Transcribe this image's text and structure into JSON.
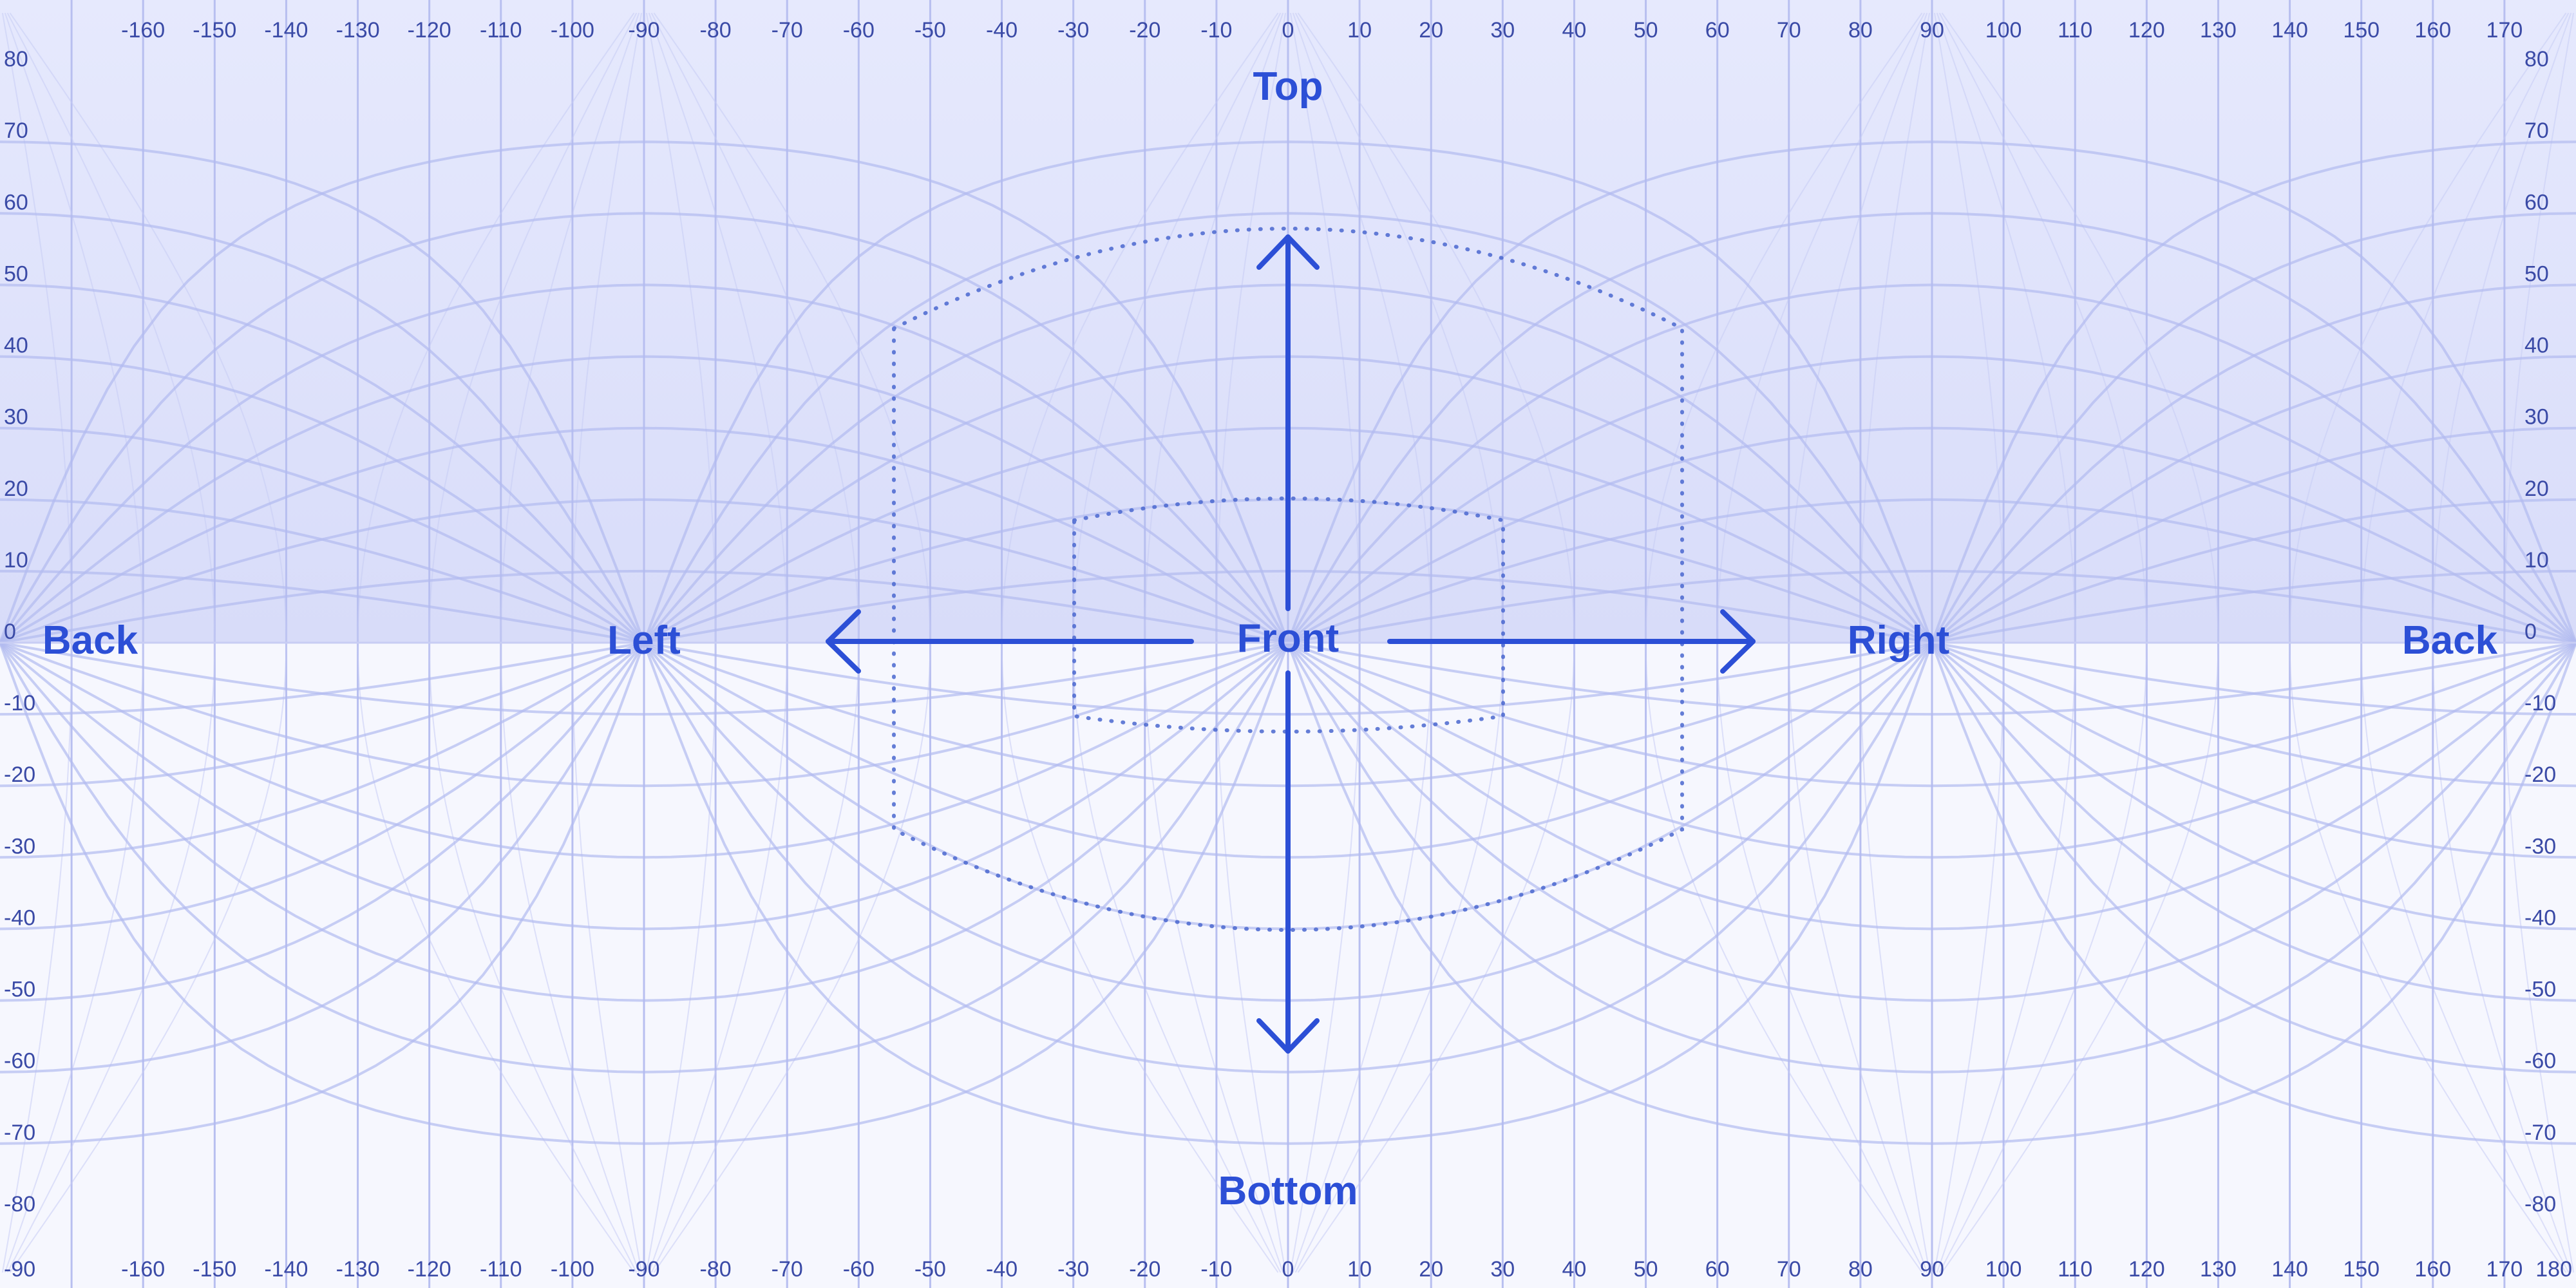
{
  "top_lon_labels": [
    "-160",
    "-150",
    "-140",
    "-130",
    "-120",
    "-110",
    "-100",
    "-90",
    "-80",
    "-70",
    "-60",
    "-50",
    "-40",
    "-30",
    "-20",
    "-10",
    "0",
    "10",
    "20",
    "30",
    "40",
    "50",
    "60",
    "70",
    "80",
    "90",
    "100",
    "110",
    "120",
    "130",
    "140",
    "150",
    "160",
    "170"
  ],
  "bottom_lon_labels": [
    "-160",
    "-150",
    "-140",
    "-130",
    "-120",
    "-110",
    "-100",
    "-90",
    "-80",
    "-70",
    "-60",
    "-50",
    "-40",
    "-30",
    "-20",
    "-10",
    "0",
    "10",
    "20",
    "30",
    "40",
    "50",
    "60",
    "70",
    "80",
    "90",
    "100",
    "110",
    "120",
    "130",
    "140",
    "150",
    "160",
    "170",
    "180"
  ],
  "left_lat_labels": [
    "80",
    "70",
    "60",
    "50",
    "40",
    "30",
    "20",
    "10",
    "0",
    "-10",
    "-20",
    "-30",
    "-40",
    "-50",
    "-60",
    "-70",
    "-80",
    "-90"
  ],
  "right_lat_labels": [
    "80",
    "70",
    "60",
    "50",
    "40",
    "30",
    "20",
    "10",
    "0",
    "-10",
    "-20",
    "-30",
    "-40",
    "-50",
    "-60",
    "-70",
    "-80"
  ],
  "directions": {
    "top": "Top",
    "bottom": "Bottom",
    "front": "Front",
    "left": "Left",
    "right": "Right",
    "back_left": "Back",
    "back_right": "Back"
  },
  "colors": {
    "accent": "#2c4fd6",
    "upper_band": "#e2e5fc",
    "lower_band": "#f6f7fe"
  }
}
